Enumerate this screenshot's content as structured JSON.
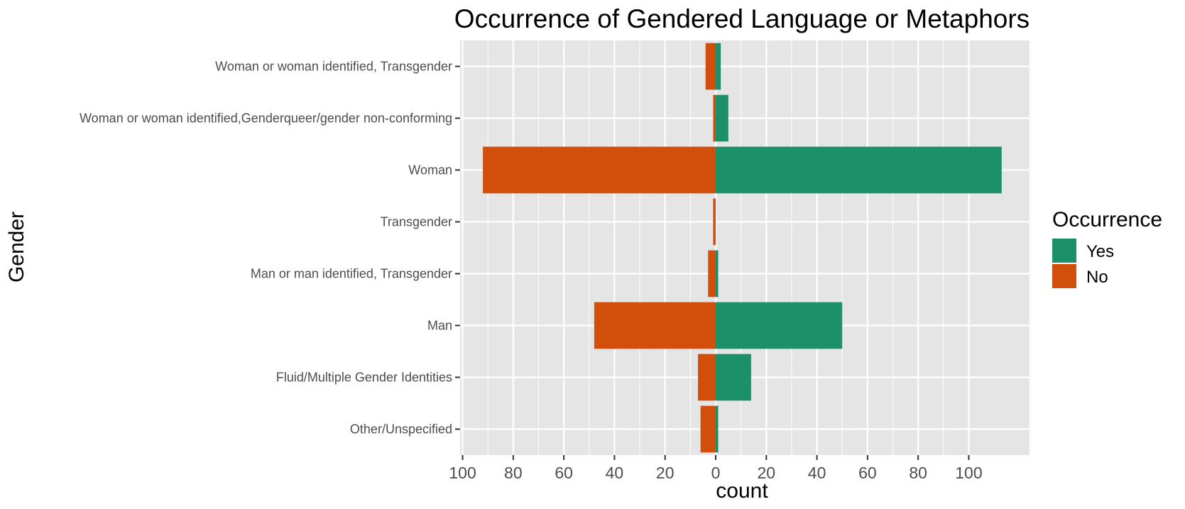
{
  "chart_data": {
    "type": "bar",
    "orientation": "horizontal",
    "layout": "diverging",
    "title": "Occurrence of Gendered Language or Metaphors",
    "xlabel": "count",
    "ylabel": "Gender",
    "categories": [
      "Woman or woman identified, Transgender",
      "Woman or woman identified,Genderqueer/gender non-conforming",
      "Woman",
      "Transgender",
      "Man or man identified, Transgender",
      "Man",
      "Fluid/Multiple Gender Identities",
      "Other/Unspecified"
    ],
    "series": [
      {
        "name": "Yes",
        "direction": "positive",
        "color": "#1b9069",
        "values": [
          2,
          5,
          113,
          0,
          1,
          50,
          14,
          1
        ]
      },
      {
        "name": "No",
        "direction": "negative",
        "color": "#d14e0b",
        "values": [
          4,
          1,
          92,
          1,
          3,
          48,
          7,
          6
        ]
      }
    ],
    "xlim": [
      -101,
      124
    ],
    "xticks": [
      -100,
      -80,
      -60,
      -40,
      -20,
      0,
      20,
      40,
      60,
      80,
      100
    ],
    "xtick_labels": [
      "100",
      "80",
      "60",
      "40",
      "20",
      "0",
      "20",
      "40",
      "60",
      "80",
      "100"
    ],
    "legend": {
      "title": "Occurrence",
      "position": "right",
      "entries": [
        "Yes",
        "No"
      ]
    },
    "grid": true,
    "panel_color": "#e5e5e5",
    "grid_color": "#ffffff"
  }
}
